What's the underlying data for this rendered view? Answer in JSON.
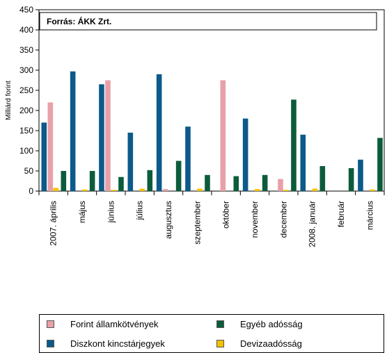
{
  "chart_data": {
    "type": "bar",
    "source_note": "Forrás:  ÁKK Zrt.",
    "ylabel": "Milliárd forint",
    "xlabel": "",
    "ylim": [
      0,
      450
    ],
    "yticks": [
      0,
      50,
      100,
      150,
      200,
      250,
      300,
      350,
      400,
      450
    ],
    "grid": false,
    "legend_position": "bottom",
    "categories": [
      "2007. április",
      "május",
      "június",
      "július",
      "augusztus",
      "szeptember",
      "október",
      "november",
      "december",
      "2008. január",
      "február",
      "március"
    ],
    "series": [
      {
        "name": "Diszkont kincstárjegyek",
        "color": "#0b5a8a",
        "values": [
          170,
          297,
          265,
          145,
          290,
          160,
          0,
          180,
          0,
          140,
          0,
          78
        ]
      },
      {
        "name": "Forint államkötvények",
        "color": "#e8a0a8",
        "values": [
          220,
          0,
          275,
          0,
          5,
          0,
          275,
          0,
          30,
          0,
          0,
          0
        ]
      },
      {
        "name": "Devizaadósság",
        "color": "#f2c200",
        "values": [
          8,
          4,
          3,
          6,
          0,
          6,
          0,
          5,
          3,
          6,
          0,
          4
        ]
      },
      {
        "name": "Egyéb adósság",
        "color": "#0c5c3c",
        "values": [
          50,
          50,
          35,
          52,
          75,
          40,
          37,
          40,
          227,
          62,
          57,
          132
        ]
      }
    ]
  },
  "legend": {
    "items": [
      {
        "label": "Forint államkötvények",
        "color": "#e8a0a8"
      },
      {
        "label": "Egyéb adósság",
        "color": "#0c5c3c"
      },
      {
        "label": "Diszkont kincstárjegyek",
        "color": "#0b5a8a"
      },
      {
        "label": "Devizaadósság",
        "color": "#f2c200"
      }
    ]
  }
}
